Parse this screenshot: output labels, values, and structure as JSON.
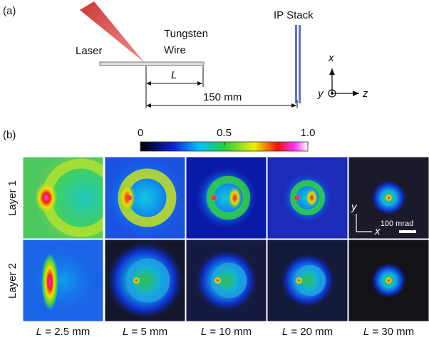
{
  "panel_a": {
    "label": "(a)",
    "laser": "Laser",
    "wire": [
      "Tungsten",
      "Wire"
    ],
    "ip_stack": "IP Stack",
    "length_symbol": "L",
    "distance": "150 mm",
    "axes": {
      "x": "x",
      "y": "y",
      "z": "z"
    }
  },
  "panel_b": {
    "label": "(b)",
    "colorbar": {
      "range": [
        0,
        1
      ],
      "ticks": [
        0,
        0.5,
        {
          "value": 1,
          "label": "1.0"
        }
      ]
    },
    "rows": [
      "Layer 1",
      "Layer 2"
    ],
    "columns": [
      {
        "symbol": "L",
        "text": "= 2.5 mm"
      },
      {
        "symbol": "L",
        "text": "= 5 mm"
      },
      {
        "symbol": "L",
        "text": "= 10 mm"
      },
      {
        "symbol": "L",
        "text": "= 20 mm"
      },
      {
        "symbol": "L",
        "text": "= 30 mm"
      }
    ],
    "scale_bar": "100 mrad",
    "inset_axes": {
      "x": "x",
      "y": "y"
    }
  }
}
